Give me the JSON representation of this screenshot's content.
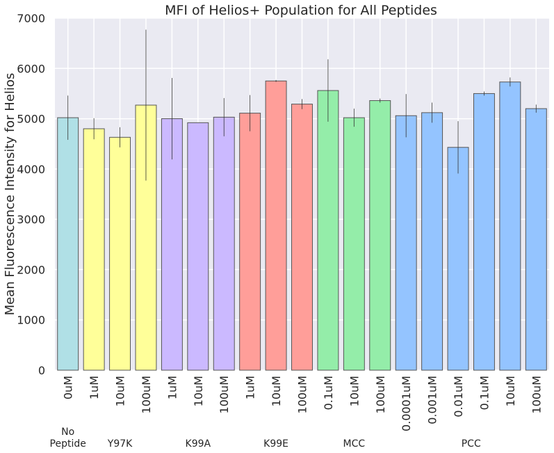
{
  "chart_data": {
    "type": "bar",
    "title": "MFI of Helios+ Population for All Peptides",
    "ylabel": "Mean Fluorescence Intensity for Helios",
    "xlabel": "",
    "ylim": [
      0,
      7000
    ],
    "yticks": [
      "0",
      "1000",
      "2000",
      "3000",
      "4000",
      "5000",
      "6000",
      "7000"
    ],
    "grid": true,
    "categories": [
      "0uM",
      "1uM",
      "10uM",
      "100uM",
      "1uM",
      "10uM",
      "100uM",
      "1uM",
      "10uM",
      "100uM",
      "0.1uM",
      "10uM",
      "100uM",
      "0.0001uM",
      "0.001uM",
      "0.01uM",
      "0.1uM",
      "10uM",
      "100uM"
    ],
    "values": [
      5020,
      4800,
      4630,
      5270,
      5000,
      4920,
      5030,
      5110,
      5750,
      5290,
      5560,
      5020,
      5360,
      5060,
      5120,
      4430,
      5500,
      5730,
      5200
    ],
    "error": [
      440,
      210,
      200,
      1500,
      810,
      0,
      380,
      360,
      20,
      100,
      620,
      180,
      40,
      430,
      200,
      520,
      40,
      90,
      80
    ],
    "groups": [
      {
        "label": "No\nPeptide",
        "start": 0,
        "end": 0,
        "color": "#b0e0e6"
      },
      {
        "label": "Y97K",
        "start": 1,
        "end": 3,
        "color": "#ffff99"
      },
      {
        "label": "K99A",
        "start": 4,
        "end": 6,
        "color": "#cbb9ff"
      },
      {
        "label": "K99E",
        "start": 7,
        "end": 9,
        "color": "#ff9e99"
      },
      {
        "label": "MCC",
        "start": 10,
        "end": 12,
        "color": "#94eda9"
      },
      {
        "label": "PCC",
        "start": 13,
        "end": 18,
        "color": "#94c4ff"
      }
    ],
    "background_color": "#eaeaf2",
    "grid_color": "#ffffff",
    "bar_edge_color": "#555555",
    "errorbar_color": "#333333"
  }
}
